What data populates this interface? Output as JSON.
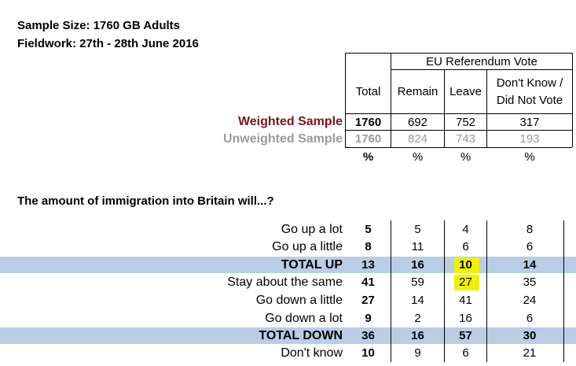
{
  "meta": {
    "sample_size": "Sample Size: 1760 GB Adults",
    "fieldwork": "Fieldwork: 27th - 28th June 2016"
  },
  "header": {
    "group_label": "EU Referendum Vote",
    "columns": [
      "Total",
      "Remain",
      "Leave",
      "Don't Know /",
      "Did Not Vote"
    ]
  },
  "samples": {
    "weighted": {
      "label": "Weighted Sample",
      "values": [
        "1760",
        "692",
        "752",
        "317"
      ]
    },
    "unweighted": {
      "label": "Unweighted Sample",
      "values": [
        "1760",
        "824",
        "743",
        "193"
      ]
    },
    "percent": [
      "%",
      "%",
      "%",
      "%"
    ]
  },
  "question": "The amount of immigration into Britain will...?",
  "rows": [
    {
      "label": "Go up a lot",
      "values": [
        "5",
        "5",
        "4",
        "8"
      ],
      "total_row": false
    },
    {
      "label": "Go up a little",
      "values": [
        "8",
        "11",
        "6",
        "6"
      ],
      "total_row": false
    },
    {
      "label": "TOTAL UP",
      "values": [
        "13",
        "16",
        "10",
        "14"
      ],
      "total_row": true
    },
    {
      "label": "Stay about the same",
      "values": [
        "41",
        "59",
        "27",
        "35"
      ],
      "total_row": false
    },
    {
      "label": "Go down a little",
      "values": [
        "27",
        "14",
        "41",
        "24"
      ],
      "total_row": false
    },
    {
      "label": "Go down a lot",
      "values": [
        "9",
        "2",
        "16",
        "6"
      ],
      "total_row": false
    },
    {
      "label": "TOTAL DOWN",
      "values": [
        "36",
        "16",
        "57",
        "30"
      ],
      "total_row": true
    },
    {
      "label": "Don't know",
      "values": [
        "10",
        "9",
        "6",
        "21"
      ],
      "total_row": false
    }
  ],
  "colors": {
    "weighted_label": "#7b1416",
    "unweighted_label": "#9a9a9a",
    "total_band": "#b9cde5",
    "highlight": "#f2f200"
  }
}
